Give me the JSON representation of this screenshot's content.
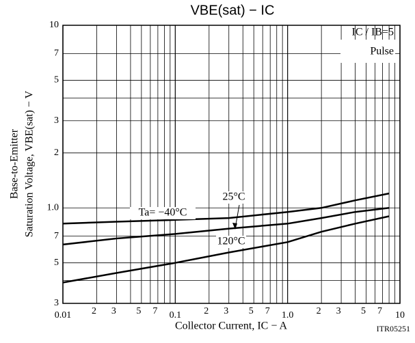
{
  "chart_data": {
    "type": "line",
    "title": "VBE(sat) − IC",
    "x_label": "Collector Current, IC  −  A",
    "y_label": [
      "Base-to-Emitter",
      "Saturation Voltage, VBE(sat)  −  V"
    ],
    "x_scale": "log",
    "y_scale": "log",
    "grid": true,
    "xlim": [
      0.01,
      10
    ],
    "ylim": [
      0.3,
      10
    ],
    "xticks": [
      {
        "value": 0.01,
        "label": "0.01"
      },
      {
        "value": 0.02,
        "label": "2"
      },
      {
        "value": 0.03,
        "label": "3"
      },
      {
        "value": 0.05,
        "label": "5"
      },
      {
        "value": 0.07,
        "label": "7"
      },
      0.1,
      {
        "value": 0.2,
        "label": "2"
      },
      {
        "value": 0.3,
        "label": "3"
      },
      {
        "value": 0.5,
        "label": "5"
      },
      {
        "value": 0.7,
        "label": "7"
      },
      {
        "value": 1,
        "label": "1.0"
      },
      2,
      3,
      5,
      7,
      10
    ],
    "minor_xticks": [
      0.04,
      0.06,
      0.08,
      0.09,
      0.4,
      0.6,
      0.8,
      0.9,
      4,
      6,
      8,
      9
    ],
    "yticks": [
      10,
      7,
      5,
      3,
      2,
      {
        "value": 1,
        "label": "1.0"
      },
      {
        "value": 0.7,
        "label": "7"
      },
      {
        "value": 0.5,
        "label": "5"
      },
      {
        "value": 0.3,
        "label": "3"
      }
    ],
    "minor_yticks": [
      4,
      0.4
    ],
    "x": [
      0.01,
      0.03,
      0.1,
      0.3,
      1,
      2,
      4,
      8
    ],
    "series": [
      {
        "name": "Ta= −40°C",
        "color": "#000000",
        "values": [
          0.82,
          0.84,
          0.86,
          0.88,
          0.95,
          1.0,
          1.1,
          1.2
        ]
      },
      {
        "name": "25°C",
        "color": "#000000",
        "values": [
          0.63,
          0.68,
          0.72,
          0.77,
          0.82,
          0.88,
          0.95,
          1.0
        ]
      },
      {
        "name": "120°C",
        "color": "#000000",
        "values": [
          0.39,
          0.44,
          0.5,
          0.57,
          0.65,
          0.74,
          0.82,
          0.9
        ]
      }
    ],
    "annotations": [
      "IC / IB=5",
      "Pulse"
    ],
    "code": "ITR05251"
  }
}
